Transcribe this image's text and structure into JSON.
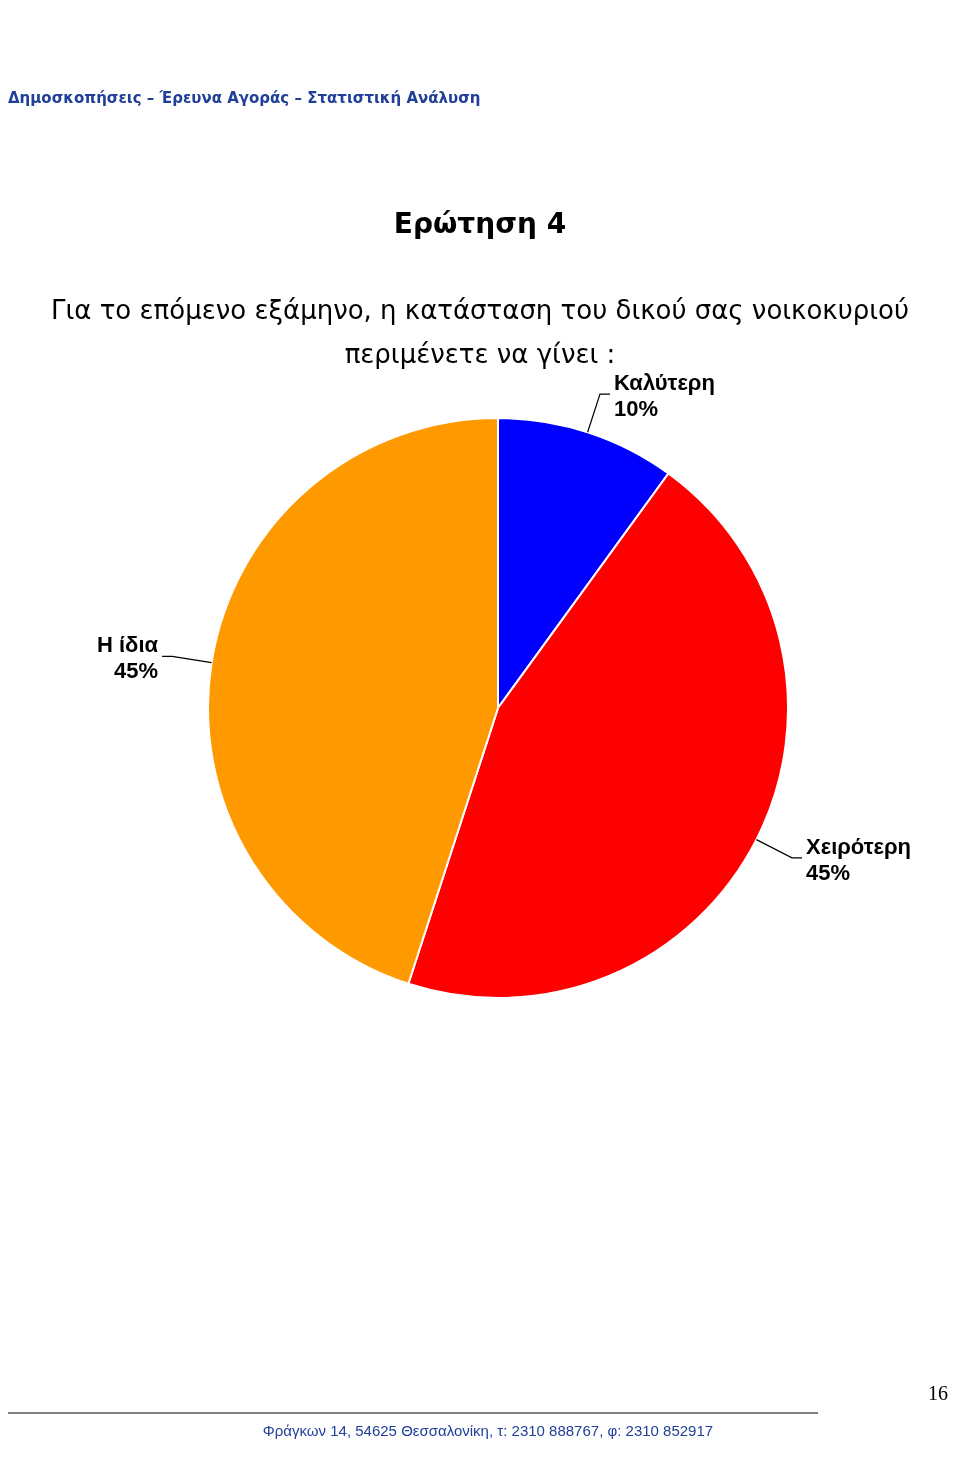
{
  "chart_data": {
    "type": "pie",
    "title": "Ερώτηση 4",
    "subtitle": "Για το επόμενο εξάμηνο, η κατάσταση του δικού σας νοικοκυριού περιμένετε να γίνει :",
    "categories": [
      "Καλύτερη",
      "Χειρότερη",
      "Η ίδια"
    ],
    "values": [
      10,
      45,
      45
    ],
    "value_labels": [
      "10%",
      "45%",
      "45%"
    ],
    "colors": [
      "#0000ff",
      "#ff0000",
      "#ff9900"
    ],
    "annotations": [
      "Δημοσκοπήσεις – Έρευνα Αγοράς – Στατιστική Ανάλυση",
      "16",
      "Φράγκων 14, 54625 Θεσσαλονίκη, τ: 2310 888767, φ: 2310 852917"
    ]
  }
}
